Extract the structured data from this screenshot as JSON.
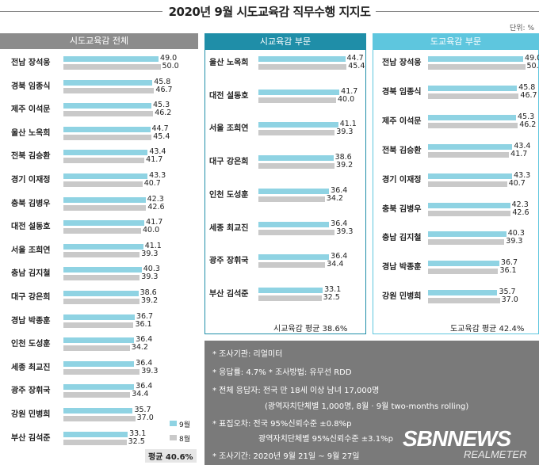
{
  "header": {
    "title": "2020년 9월 시도교육감 직무수행 지지도",
    "unit": "단위: %"
  },
  "legend": {
    "sep_label": "9월",
    "aug_label": "8월"
  },
  "colors": {
    "sep": "#8fd3e3",
    "aug": "#c9c9c9",
    "header_all": "#8c8c8c",
    "header_city": "#1f8ea8",
    "header_prov": "#5ec6de"
  },
  "chart_data": [
    {
      "type": "bar",
      "title": "시도교육감 전체",
      "categories": [
        "전남 장석웅",
        "경북 임종식",
        "제주 이석문",
        "울산 노옥희",
        "전북 김승환",
        "경기 이재정",
        "충북 김병우",
        "대전 설동호",
        "서울 조희연",
        "충남 김지철",
        "대구 강은희",
        "경남 박종훈",
        "인천 도성훈",
        "세종 최교진",
        "광주 장휘국",
        "강원 민병희",
        "부산 김석준"
      ],
      "series": [
        {
          "name": "9월",
          "values": [
            49.0,
            45.8,
            45.3,
            44.7,
            43.4,
            43.3,
            42.3,
            41.7,
            41.1,
            40.3,
            38.6,
            36.7,
            36.4,
            36.4,
            36.4,
            35.7,
            33.1
          ]
        },
        {
          "name": "8월",
          "values": [
            50.0,
            46.7,
            46.2,
            45.4,
            41.7,
            40.7,
            42.6,
            40.0,
            39.3,
            39.3,
            39.2,
            36.1,
            34.2,
            39.3,
            34.4,
            37.0,
            32.5
          ]
        }
      ],
      "average": "평균 40.6%"
    },
    {
      "type": "bar",
      "title": "시교육감 부문",
      "categories": [
        "울산 노옥희",
        "대전 설동호",
        "서울 조희연",
        "대구 강은희",
        "인천 도성훈",
        "세종 최교진",
        "광주 장휘국",
        "부산 김석준"
      ],
      "series": [
        {
          "name": "9월",
          "values": [
            44.7,
            41.7,
            41.1,
            38.6,
            36.4,
            36.4,
            36.4,
            33.1
          ]
        },
        {
          "name": "8월",
          "values": [
            45.4,
            40.0,
            39.3,
            39.2,
            34.2,
            39.3,
            34.4,
            32.5
          ]
        }
      ],
      "average": "시교육감 평균 38.6%"
    },
    {
      "type": "bar",
      "title": "도교육감 부문",
      "categories": [
        "전남 장석웅",
        "경북 임종식",
        "제주 이석문",
        "전북 김승환",
        "경기 이재정",
        "충북 김병우",
        "충남 김지철",
        "경남 박종훈",
        "강원 민병희"
      ],
      "series": [
        {
          "name": "9월",
          "values": [
            49.0,
            45.8,
            45.3,
            43.4,
            43.3,
            42.3,
            40.3,
            36.7,
            35.7
          ]
        },
        {
          "name": "8월",
          "values": [
            50.0,
            46.7,
            46.2,
            41.7,
            40.7,
            42.6,
            39.3,
            36.1,
            37.0
          ]
        }
      ],
      "average": "도교육감 평균 42.4%"
    }
  ],
  "info": [
    "* 조사기관: 리얼미터",
    "* 응답률: 4.7% * 조사방법: 유무선 RDD",
    "* 전체 응답자: 전국 만 18세 이상 남녀 17,000명",
    "(광역자치단체별 1,000명, 8월 · 9월 two-months rolling)",
    "* 표집오차: 전국 95%신뢰수준 ±0.8%p",
    "광역자치단체별 95%신뢰수준 ±3.1%p",
    "* 조사기간: 2020년 9월 21일 ~ 9월 27일"
  ],
  "watermark": {
    "main": "SBNNEWS",
    "sub": "REALMETER"
  }
}
